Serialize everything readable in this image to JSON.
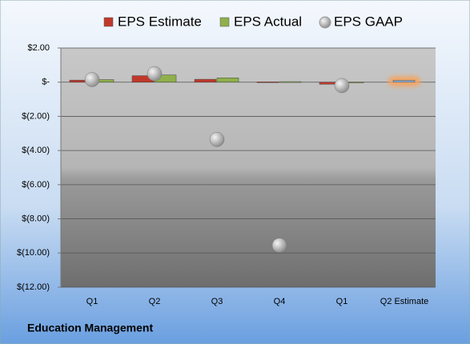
{
  "chart_data": {
    "type": "bar",
    "title": "Education Management",
    "categories": [
      "Q1",
      "Q2",
      "Q3",
      "Q4",
      "Q1",
      "Q2 Estimate"
    ],
    "series": [
      {
        "name": "EPS Estimate",
        "type": "bar",
        "color": "#c0392b",
        "values": [
          0.12,
          0.38,
          0.17,
          0.02,
          -0.12,
          0.1
        ]
      },
      {
        "name": "EPS Actual",
        "type": "bar",
        "color": "#8fb04a",
        "values": [
          0.15,
          0.42,
          0.25,
          0.03,
          -0.05,
          null
        ]
      },
      {
        "name": "EPS GAAP",
        "type": "scatter",
        "color": "#b0b0b0",
        "values": [
          0.15,
          0.5,
          -3.35,
          -9.55,
          -0.2,
          null
        ]
      }
    ],
    "forecast_color": "#8db3e2",
    "forecast_glow": "#f4a460",
    "ylim": [
      -12,
      2
    ],
    "yticks": [
      {
        "value": 2,
        "label": "$2.00"
      },
      {
        "value": 0,
        "label": "$-"
      },
      {
        "value": -2,
        "label": "$(2.00)"
      },
      {
        "value": -4,
        "label": "$(4.00)"
      },
      {
        "value": -6,
        "label": "$(6.00)"
      },
      {
        "value": -8,
        "label": "$(8.00)"
      },
      {
        "value": -10,
        "label": "$(10.00)"
      },
      {
        "value": -12,
        "label": "$(12.00)"
      }
    ],
    "grid": true
  }
}
